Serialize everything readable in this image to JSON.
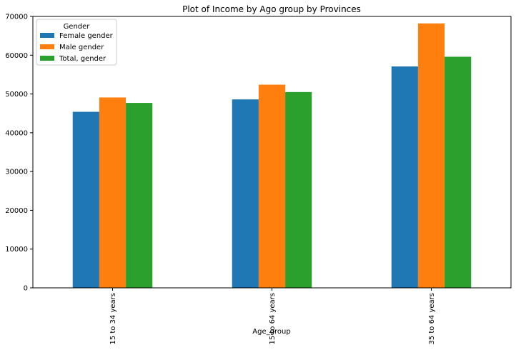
{
  "chart_data": {
    "type": "bar",
    "title": "Plot of Income by Ago group by Provinces",
    "xlabel": "Age_group",
    "ylabel": "",
    "categories": [
      "15 to 34 years",
      "15 to 64 years",
      "35 to 64 years"
    ],
    "series": [
      {
        "name": "Female gender",
        "color": "#1f77b4",
        "values": [
          45400,
          48600,
          57100
        ]
      },
      {
        "name": "Male gender",
        "color": "#ff7f0e",
        "values": [
          49100,
          52400,
          68200
        ]
      },
      {
        "name": "Total, gender",
        "color": "#2ca02c",
        "values": [
          47700,
          50500,
          59600
        ]
      }
    ],
    "ylim": [
      0,
      70000
    ],
    "yticks": [
      0,
      10000,
      20000,
      30000,
      40000,
      50000,
      60000,
      70000
    ],
    "ytick_labels": [
      "0",
      "10000",
      "20000",
      "30000",
      "40000",
      "50000",
      "60000",
      "70000"
    ],
    "legend": {
      "title": "Gender",
      "placement": "top-left"
    },
    "grid": false
  }
}
